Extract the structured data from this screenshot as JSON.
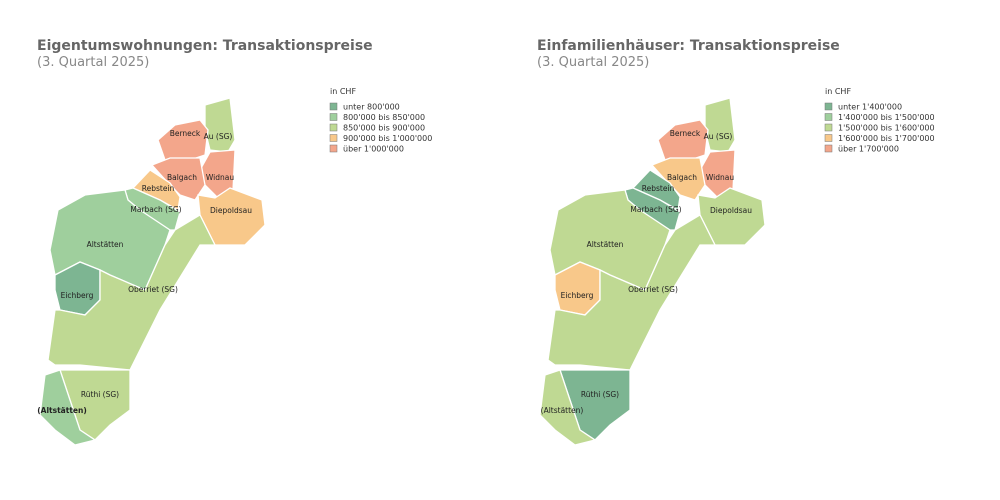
{
  "maps": [
    {
      "title": "Eigentumswohnungen: Transaktionspreise",
      "subtitle": "(3. Quartal 2025)",
      "legend_title": "in CHF",
      "legend": [
        {
          "label": "unter 800'000",
          "color": "#7db592"
        },
        {
          "label": "800'000 bis 850'000",
          "color": "#9fcf9d"
        },
        {
          "label": "850'000 bis 900'000",
          "color": "#bfd993"
        },
        {
          "label": "900'000 bis 1'000'000",
          "color": "#f8c88a"
        },
        {
          "label": "über 1'000'000",
          "color": "#f3a68b"
        }
      ],
      "regions": [
        {
          "name": "Au (SG)",
          "class": 2
        },
        {
          "name": "Berneck",
          "class": 4
        },
        {
          "name": "Widnau",
          "class": 4
        },
        {
          "name": "Balgach",
          "class": 4
        },
        {
          "name": "Rebstein",
          "class": 3
        },
        {
          "name": "Diepoldsau",
          "class": 3
        },
        {
          "name": "Marbach (SG)",
          "class": 1
        },
        {
          "name": "Altstätten",
          "class": 1
        },
        {
          "name": "Eichberg",
          "class": 0
        },
        {
          "name": "Oberriet (SG)",
          "class": 2
        },
        {
          "name": "Rüthi (SG)",
          "class": 2
        },
        {
          "name": "(Altstätten)",
          "class": 1
        }
      ]
    },
    {
      "title": "Einfamilienhäuser: Transaktionspreise",
      "subtitle": "(3. Quartal 2025)",
      "legend_title": "in CHF",
      "legend": [
        {
          "label": "unter 1'400'000",
          "color": "#7db592"
        },
        {
          "label": "1'400'000 bis 1'500'000",
          "color": "#9fcf9d"
        },
        {
          "label": "1'500'000 bis 1'600'000",
          "color": "#bfd993"
        },
        {
          "label": "1'600'000 bis 1'700'000",
          "color": "#f8c88a"
        },
        {
          "label": "über 1'700'000",
          "color": "#f3a68b"
        }
      ],
      "regions": [
        {
          "name": "Au (SG)",
          "class": 2
        },
        {
          "name": "Berneck",
          "class": 4
        },
        {
          "name": "Widnau",
          "class": 4
        },
        {
          "name": "Balgach",
          "class": 3
        },
        {
          "name": "Rebstein",
          "class": 0
        },
        {
          "name": "Diepoldsau",
          "class": 2
        },
        {
          "name": "Marbach (SG)",
          "class": 0
        },
        {
          "name": "Altstätten",
          "class": 2
        },
        {
          "name": "Eichberg",
          "class": 3
        },
        {
          "name": "Oberriet (SG)",
          "class": 2
        },
        {
          "name": "Rüthi (SG)",
          "class": 0
        },
        {
          "name": "(Altstätten)",
          "class": 2
        }
      ]
    }
  ]
}
